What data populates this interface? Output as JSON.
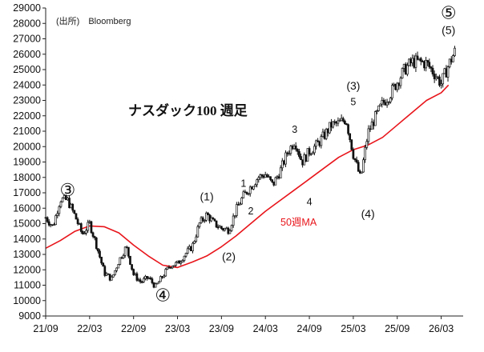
{
  "chart_data": {
    "type": "candlestick",
    "source": "(出所)　Bloomberg",
    "title": "ナスダック100  週足",
    "ylim": [
      9000,
      29000
    ],
    "y_ticks": [
      "9000",
      "10000",
      "11000",
      "12000",
      "13000",
      "14000",
      "15000",
      "16000",
      "17000",
      "18000",
      "19000",
      "20000",
      "21000",
      "22000",
      "23000",
      "24000",
      "25000",
      "26000",
      "27000",
      "28000",
      "29000"
    ],
    "x_range": [
      "2021-09",
      "2026-06"
    ],
    "x_ticks": [
      {
        "date": "2021-09",
        "label": "21/09"
      },
      {
        "date": "2022-03",
        "label": "22/03"
      },
      {
        "date": "2022-09",
        "label": "22/09"
      },
      {
        "date": "2023-03",
        "label": "23/03"
      },
      {
        "date": "2023-09",
        "label": "23/09"
      },
      {
        "date": "2024-03",
        "label": "24/03"
      },
      {
        "date": "2024-09",
        "label": "24/09"
      },
      {
        "date": "2025-03",
        "label": "25/03"
      },
      {
        "date": "2025-09",
        "label": "25/09"
      },
      {
        "date": "2026-03",
        "label": "26/03"
      }
    ],
    "ohlc_series_name": "ナスダック100",
    "ohlc_path": [
      [
        "2021-09",
        15400
      ],
      [
        "2021-10",
        14800
      ],
      [
        "2021-11",
        16600
      ],
      [
        "2021-12",
        16500
      ],
      [
        "2022-01",
        15500
      ],
      [
        "2022-02",
        14300
      ],
      [
        "2022-03",
        15000
      ],
      [
        "2022-04",
        13500
      ],
      [
        "2022-05",
        11800
      ],
      [
        "2022-06",
        11400
      ],
      [
        "2022-07",
        12600
      ],
      [
        "2022-08",
        13500
      ],
      [
        "2022-09",
        11700
      ],
      [
        "2022-10",
        11200
      ],
      [
        "2022-11",
        11500
      ],
      [
        "2022-12",
        10900
      ],
      [
        "2023-01",
        11600
      ],
      [
        "2023-02",
        12300
      ],
      [
        "2023-03",
        12400
      ],
      [
        "2023-04",
        13000
      ],
      [
        "2023-05",
        13500
      ],
      [
        "2023-06",
        15000
      ],
      [
        "2023-07",
        15600
      ],
      [
        "2023-08",
        15000
      ],
      [
        "2023-09",
        14700
      ],
      [
        "2023-10",
        14600
      ],
      [
        "2023-11",
        15900
      ],
      [
        "2023-12",
        16800
      ],
      [
        "2024-01",
        17400
      ],
      [
        "2024-02",
        18000
      ],
      [
        "2024-03",
        18200
      ],
      [
        "2024-04",
        17500
      ],
      [
        "2024-05",
        18400
      ],
      [
        "2024-06",
        19600
      ],
      [
        "2024-07",
        20400
      ],
      [
        "2024-08",
        19000
      ],
      [
        "2024-09",
        19700
      ],
      [
        "2024-10",
        20100
      ],
      [
        "2024-11",
        20700
      ],
      [
        "2024-12",
        21400
      ],
      [
        "2025-01",
        21500
      ],
      [
        "2025-02",
        21800
      ],
      [
        "2025-03",
        19500
      ],
      [
        "2025-04",
        17900
      ],
      [
        "2025-05",
        20900
      ],
      [
        "2025-06",
        21900
      ],
      [
        "2025-07",
        22800
      ],
      [
        "2025-08",
        23400
      ],
      [
        "2025-09",
        24200
      ],
      [
        "2025-10",
        25000
      ],
      [
        "2025-11",
        25500
      ],
      [
        "2025-12",
        25500
      ],
      [
        "2026-01",
        25400
      ],
      [
        "2026-02",
        24800
      ],
      [
        "2026-03",
        24100
      ],
      [
        "2026-04",
        25300
      ],
      [
        "2026-05",
        26300
      ]
    ],
    "ma_series_name": "50週MA",
    "ma": [
      [
        "2021-09",
        13400
      ],
      [
        "2021-11",
        13900
      ],
      [
        "2022-01",
        14500
      ],
      [
        "2022-03",
        14850
      ],
      [
        "2022-05",
        14800
      ],
      [
        "2022-07",
        14400
      ],
      [
        "2022-09",
        13600
      ],
      [
        "2022-11",
        12900
      ],
      [
        "2023-01",
        12300
      ],
      [
        "2023-03",
        12150
      ],
      [
        "2023-05",
        12500
      ],
      [
        "2023-07",
        12900
      ],
      [
        "2023-09",
        13500
      ],
      [
        "2023-11",
        14200
      ],
      [
        "2024-01",
        15000
      ],
      [
        "2024-03",
        15800
      ],
      [
        "2024-05",
        16500
      ],
      [
        "2024-07",
        17200
      ],
      [
        "2024-09",
        17900
      ],
      [
        "2024-11",
        18600
      ],
      [
        "2025-01",
        19300
      ],
      [
        "2025-03",
        19800
      ],
      [
        "2025-05",
        20100
      ],
      [
        "2025-07",
        20600
      ],
      [
        "2025-09",
        21400
      ],
      [
        "2025-11",
        22200
      ],
      [
        "2026-01",
        23000
      ],
      [
        "2026-03",
        23500
      ],
      [
        "2026-04",
        24000
      ]
    ],
    "annotations": [
      {
        "text": "③",
        "at": [
          "2021-12",
          16800
        ],
        "style": "circled"
      },
      {
        "text": "④",
        "at": [
          "2023-01",
          9950
        ],
        "style": "circled"
      },
      {
        "text": "⑤",
        "at": [
          "2026-04",
          28300
        ],
        "style": "circled"
      },
      {
        "text": "(5)",
        "at": [
          "2026-04",
          27300
        ],
        "style": "label"
      },
      {
        "text": "(1)",
        "at": [
          "2023-07",
          16500
        ],
        "style": "label"
      },
      {
        "text": "(2)",
        "at": [
          "2023-10",
          12600
        ],
        "style": "label"
      },
      {
        "text": "1",
        "at": [
          "2023-12",
          17400
        ],
        "style": "small"
      },
      {
        "text": "2",
        "at": [
          "2024-01",
          15600
        ],
        "style": "small"
      },
      {
        "text": "3",
        "at": [
          "2024-07",
          20900
        ],
        "style": "small"
      },
      {
        "text": "4",
        "at": [
          "2024-09",
          16200
        ],
        "style": "small"
      },
      {
        "text": "(3)",
        "at": [
          "2025-03",
          23700
        ],
        "style": "label"
      },
      {
        "text": "5",
        "at": [
          "2025-03",
          22700
        ],
        "style": "small"
      },
      {
        "text": "(4)",
        "at": [
          "2025-05",
          15400
        ],
        "style": "label"
      }
    ]
  }
}
